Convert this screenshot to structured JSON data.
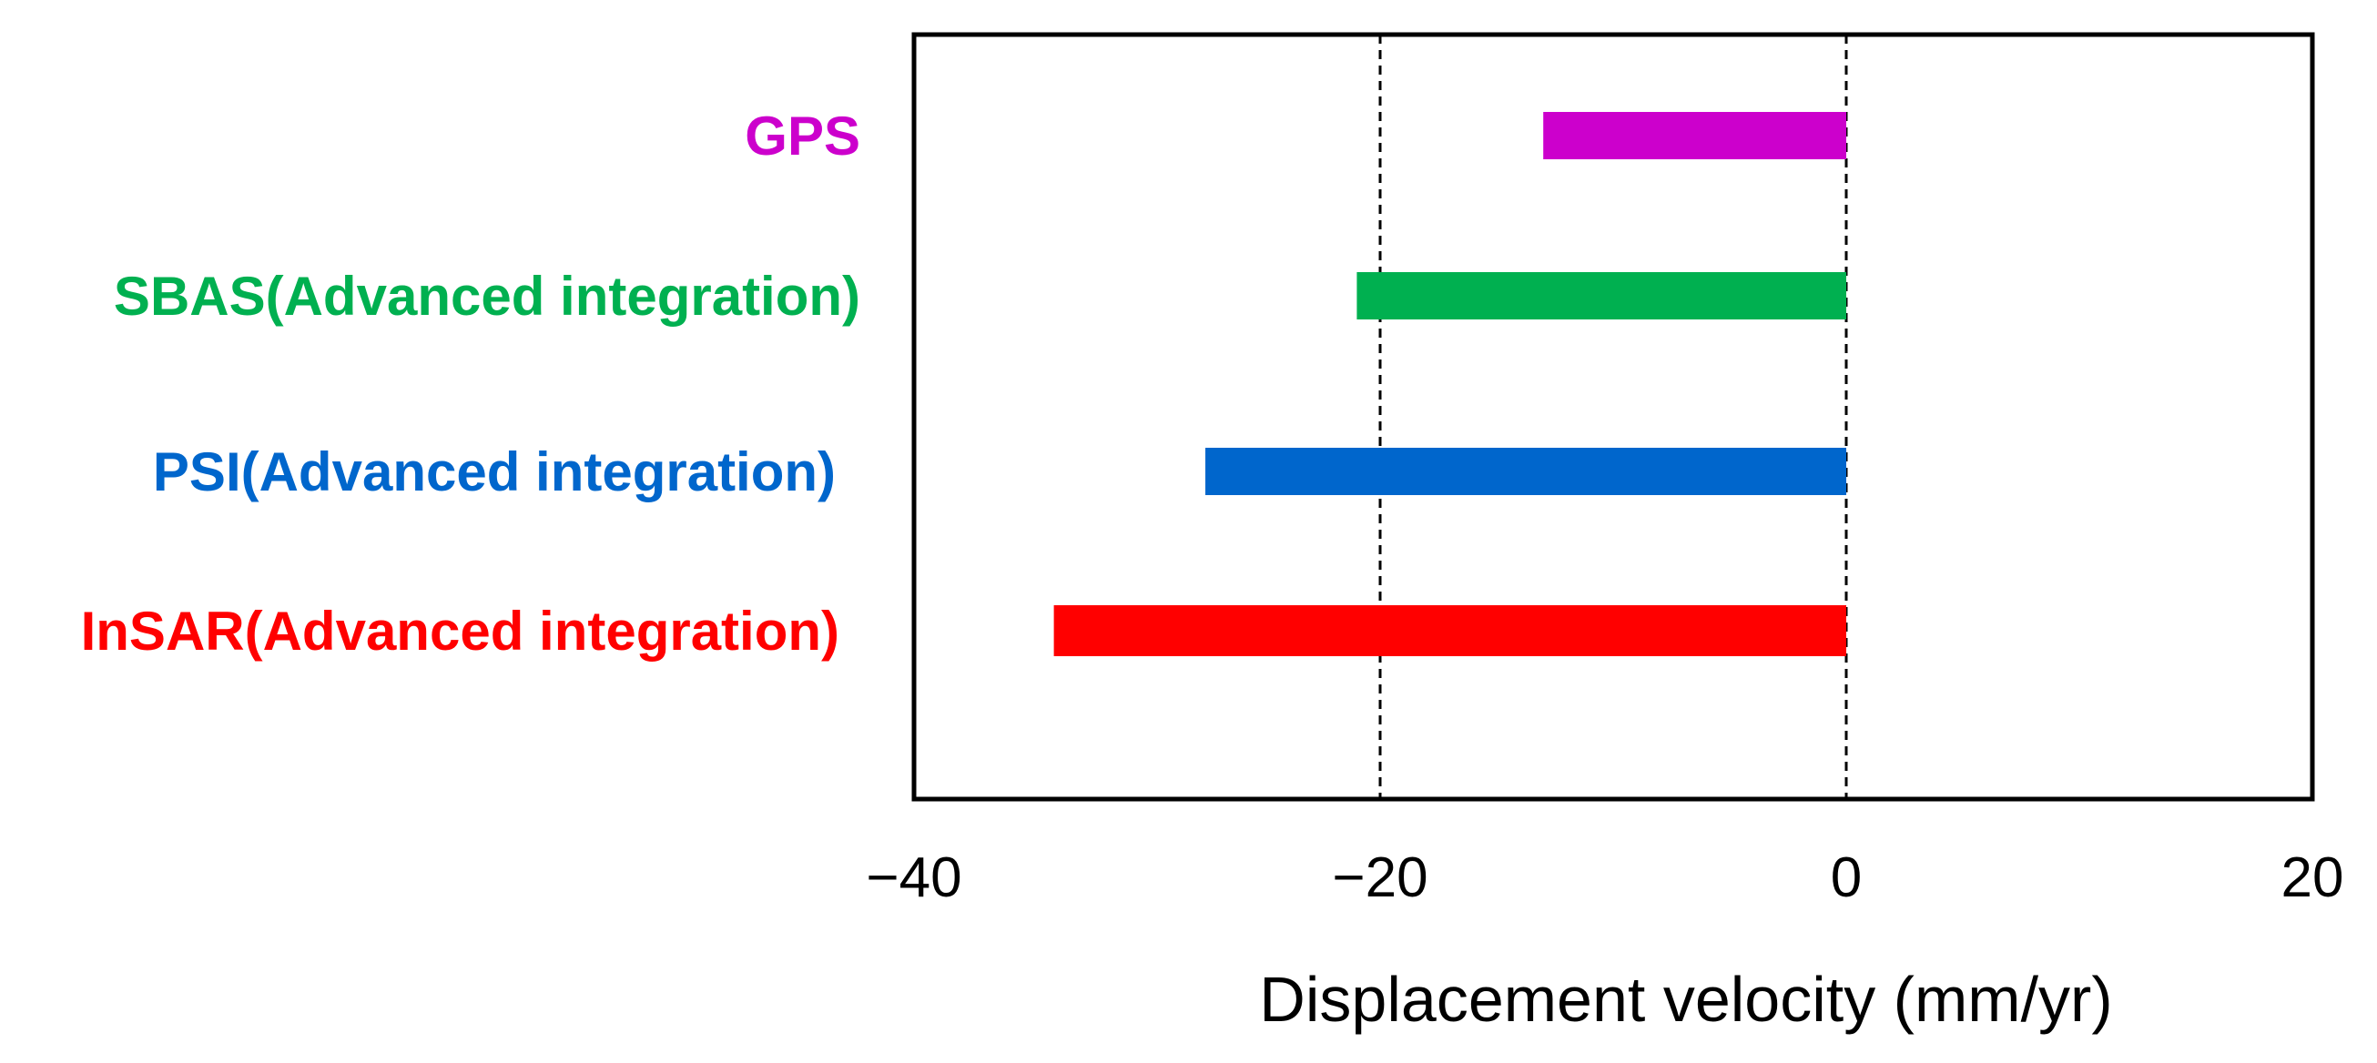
{
  "chart_data": {
    "type": "bar",
    "orientation": "horizontal",
    "title": "",
    "xlabel": "Displacement velocity (mm/yr)",
    "ylabel": "",
    "xlim": [
      -40,
      20
    ],
    "xticks": [
      -40,
      -20,
      0,
      20
    ],
    "xtick_labels": [
      "−40",
      "−20",
      "0",
      "20"
    ],
    "reference_lines": [
      -20,
      0
    ],
    "grid": false,
    "categories": [
      "GPS",
      "SBAS(Advanced integration)",
      "PSI(Advanced integration)",
      "InSAR(Advanced integration)"
    ],
    "values": [
      -13,
      -21,
      -27.5,
      -34
    ],
    "colors": [
      "#cc00cc",
      "#00b050",
      "#0066cc",
      "#ff0000"
    ]
  }
}
